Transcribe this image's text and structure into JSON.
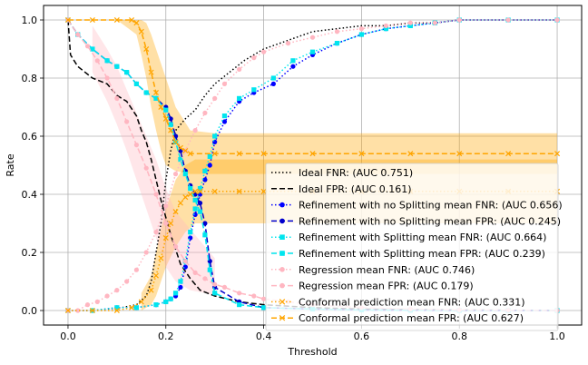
{
  "chart_data": {
    "type": "line",
    "title": "",
    "xlabel": "Threshold",
    "ylabel": "Rate",
    "xlim": [
      -0.05,
      1.05
    ],
    "ylim": [
      -0.05,
      1.05
    ],
    "xticks": [
      0.0,
      0.2,
      0.4,
      0.6,
      0.8,
      1.0
    ],
    "xtick_labels": [
      "0.0",
      "0.2",
      "0.4",
      "0.6",
      "0.8",
      "1.0"
    ],
    "yticks": [
      0.0,
      0.2,
      0.4,
      0.6,
      0.8,
      1.0
    ],
    "ytick_labels": [
      "0.0",
      "0.2",
      "0.4",
      "0.6",
      "0.8",
      "1.0"
    ],
    "grid": true,
    "legend_position": "lower-right",
    "series": [
      {
        "name": "Ideal FNR: (AUC 0.751)",
        "color": "#000000",
        "style": "dotted",
        "marker": "none",
        "x": [
          0,
          0.02,
          0.05,
          0.08,
          0.11,
          0.14,
          0.16,
          0.17,
          0.18,
          0.19,
          0.2,
          0.21,
          0.22,
          0.24,
          0.26,
          0.28,
          0.3,
          0.33,
          0.36,
          0.4,
          0.45,
          0.5,
          0.55,
          0.6,
          0.65,
          0.7,
          0.75,
          0.8,
          0.9,
          1.0
        ],
        "y": [
          0,
          0,
          0,
          0.005,
          0.01,
          0.02,
          0.05,
          0.1,
          0.2,
          0.3,
          0.45,
          0.55,
          0.62,
          0.66,
          0.69,
          0.74,
          0.78,
          0.82,
          0.86,
          0.9,
          0.93,
          0.96,
          0.97,
          0.98,
          0.98,
          0.99,
          0.99,
          1.0,
          1.0,
          1.0
        ]
      },
      {
        "name": "Ideal FPR: (AUC 0.161)",
        "color": "#000000",
        "style": "dashed",
        "marker": "none",
        "x": [
          0,
          0.005,
          0.02,
          0.05,
          0.08,
          0.1,
          0.12,
          0.14,
          0.15,
          0.16,
          0.17,
          0.18,
          0.19,
          0.2,
          0.21,
          0.22,
          0.23,
          0.25,
          0.27,
          0.3,
          0.35,
          0.4,
          0.5,
          0.6,
          0.7,
          0.8,
          1.0
        ],
        "y": [
          1.0,
          0.88,
          0.84,
          0.8,
          0.78,
          0.74,
          0.72,
          0.67,
          0.62,
          0.58,
          0.52,
          0.45,
          0.38,
          0.32,
          0.26,
          0.21,
          0.16,
          0.11,
          0.07,
          0.05,
          0.03,
          0.02,
          0.01,
          0.005,
          0.003,
          0.002,
          0.0
        ]
      },
      {
        "name": "Refinement with no Splitting mean FNR: (AUC 0.656)",
        "color": "#0000ff",
        "style": "dotted",
        "marker": "circle",
        "x": [
          0,
          0.05,
          0.1,
          0.14,
          0.18,
          0.2,
          0.21,
          0.22,
          0.23,
          0.24,
          0.25,
          0.26,
          0.27,
          0.28,
          0.29,
          0.3,
          0.32,
          0.35,
          0.38,
          0.42,
          0.46,
          0.5,
          0.55,
          0.6,
          0.65,
          0.7,
          0.75,
          0.8,
          0.9,
          1.0
        ],
        "y": [
          0,
          0,
          0.01,
          0.01,
          0.02,
          0.03,
          0.04,
          0.05,
          0.08,
          0.15,
          0.25,
          0.33,
          0.4,
          0.45,
          0.5,
          0.58,
          0.65,
          0.72,
          0.75,
          0.78,
          0.84,
          0.88,
          0.92,
          0.95,
          0.97,
          0.98,
          0.99,
          1.0,
          1.0,
          1.0
        ]
      },
      {
        "name": "Refinement with no Splitting mean FPR: (AUC 0.245)",
        "color": "#0000cd",
        "style": "dashed",
        "marker": "circle",
        "x": [
          0,
          0.02,
          0.05,
          0.08,
          0.1,
          0.12,
          0.14,
          0.16,
          0.18,
          0.2,
          0.21,
          0.22,
          0.23,
          0.24,
          0.25,
          0.26,
          0.27,
          0.28,
          0.29,
          0.3,
          0.35,
          0.4,
          0.5,
          0.6,
          0.7,
          0.8,
          0.9,
          1.0
        ],
        "y": [
          1.0,
          0.95,
          0.9,
          0.86,
          0.84,
          0.82,
          0.78,
          0.75,
          0.73,
          0.7,
          0.66,
          0.6,
          0.55,
          0.48,
          0.43,
          0.4,
          0.37,
          0.3,
          0.17,
          0.08,
          0.03,
          0.01,
          0.005,
          0.002,
          0.001,
          0,
          0,
          0
        ]
      },
      {
        "name": "Refinement with Splitting mean FNR: (AUC 0.664)",
        "color": "#00e5ee",
        "style": "dotted",
        "marker": "square",
        "x": [
          0,
          0.05,
          0.1,
          0.14,
          0.18,
          0.2,
          0.21,
          0.22,
          0.23,
          0.24,
          0.25,
          0.26,
          0.27,
          0.28,
          0.29,
          0.3,
          0.32,
          0.35,
          0.38,
          0.42,
          0.46,
          0.5,
          0.55,
          0.6,
          0.65,
          0.7,
          0.75,
          0.8,
          0.9,
          1.0
        ],
        "y": [
          0,
          0,
          0.01,
          0.01,
          0.02,
          0.03,
          0.04,
          0.06,
          0.1,
          0.17,
          0.27,
          0.35,
          0.42,
          0.48,
          0.53,
          0.6,
          0.67,
          0.73,
          0.76,
          0.8,
          0.86,
          0.89,
          0.92,
          0.95,
          0.97,
          0.98,
          0.99,
          1.0,
          1.0,
          1.0
        ]
      },
      {
        "name": "Refinement with Splitting mean FPR: (AUC 0.239)",
        "color": "#00e5ee",
        "style": "dashed",
        "marker": "square",
        "x": [
          0,
          0.02,
          0.05,
          0.08,
          0.1,
          0.12,
          0.14,
          0.16,
          0.18,
          0.2,
          0.21,
          0.22,
          0.23,
          0.24,
          0.25,
          0.26,
          0.27,
          0.28,
          0.29,
          0.3,
          0.35,
          0.4,
          0.5,
          0.6,
          0.7,
          0.8,
          0.9,
          1.0
        ],
        "y": [
          1.0,
          0.95,
          0.9,
          0.86,
          0.84,
          0.82,
          0.78,
          0.75,
          0.73,
          0.69,
          0.64,
          0.58,
          0.52,
          0.47,
          0.42,
          0.38,
          0.34,
          0.26,
          0.14,
          0.06,
          0.02,
          0.01,
          0.005,
          0.002,
          0.001,
          0,
          0,
          0
        ]
      },
      {
        "name": "Regression mean FNR: (AUC 0.746)",
        "color": "#ffb6c1",
        "style": "dotted",
        "marker": "circle",
        "x": [
          0,
          0.02,
          0.04,
          0.06,
          0.08,
          0.1,
          0.12,
          0.14,
          0.16,
          0.18,
          0.2,
          0.22,
          0.24,
          0.26,
          0.28,
          0.3,
          0.32,
          0.35,
          0.38,
          0.4,
          0.45,
          0.5,
          0.55,
          0.6,
          0.65,
          0.7,
          0.75,
          0.8,
          0.9,
          1.0
        ],
        "y": [
          0,
          0,
          0.02,
          0.03,
          0.05,
          0.07,
          0.1,
          0.14,
          0.2,
          0.27,
          0.36,
          0.47,
          0.55,
          0.62,
          0.68,
          0.73,
          0.78,
          0.83,
          0.87,
          0.89,
          0.92,
          0.94,
          0.96,
          0.97,
          0.98,
          0.99,
          0.99,
          1.0,
          1.0,
          1.0
        ]
      },
      {
        "name": "Regression mean FPR: (AUC 0.179)",
        "color": "#ffb6c1",
        "style": "dashed",
        "marker": "circle",
        "x": [
          0,
          0.02,
          0.04,
          0.06,
          0.08,
          0.1,
          0.12,
          0.14,
          0.16,
          0.18,
          0.2,
          0.22,
          0.24,
          0.26,
          0.28,
          0.3,
          0.32,
          0.35,
          0.38,
          0.4,
          0.45,
          0.5,
          0.6,
          0.7,
          0.8,
          0.9,
          1.0
        ],
        "y": [
          1.0,
          0.95,
          0.91,
          0.86,
          0.8,
          0.73,
          0.65,
          0.57,
          0.49,
          0.4,
          0.3,
          0.22,
          0.17,
          0.13,
          0.11,
          0.09,
          0.08,
          0.06,
          0.05,
          0.04,
          0.03,
          0.02,
          0.01,
          0.005,
          0.002,
          0.001,
          0
        ]
      },
      {
        "name": "Conformal prediction mean FNR: (AUC 0.331)",
        "color": "#ffa500",
        "style": "dotted",
        "marker": "x",
        "x": [
          0,
          0.05,
          0.1,
          0.13,
          0.15,
          0.17,
          0.18,
          0.19,
          0.2,
          0.21,
          0.22,
          0.23,
          0.24,
          0.25,
          0.26,
          0.27,
          0.3,
          0.35,
          0.4,
          0.5,
          0.6,
          0.7,
          0.8,
          0.9,
          1.0
        ],
        "y": [
          0,
          0,
          0.0,
          0.01,
          0.03,
          0.07,
          0.12,
          0.18,
          0.25,
          0.3,
          0.34,
          0.37,
          0.39,
          0.4,
          0.41,
          0.41,
          0.41,
          0.41,
          0.41,
          0.41,
          0.41,
          0.41,
          0.41,
          0.41,
          0.41
        ]
      },
      {
        "name": "Conformal prediction mean FPR: (AUC 0.627)",
        "color": "#ffa500",
        "style": "dashed",
        "marker": "x",
        "x": [
          0,
          0.05,
          0.1,
          0.13,
          0.14,
          0.15,
          0.16,
          0.17,
          0.18,
          0.19,
          0.2,
          0.21,
          0.22,
          0.23,
          0.24,
          0.25,
          0.3,
          0.35,
          0.4,
          0.5,
          0.6,
          0.7,
          0.8,
          0.9,
          1.0
        ],
        "y": [
          1.0,
          1.0,
          1.0,
          1.0,
          0.99,
          0.96,
          0.9,
          0.82,
          0.75,
          0.7,
          0.66,
          0.62,
          0.58,
          0.56,
          0.55,
          0.54,
          0.54,
          0.54,
          0.54,
          0.54,
          0.54,
          0.54,
          0.54,
          0.54,
          0.54
        ]
      }
    ],
    "bands": [
      {
        "label": "Conformal FPR band",
        "color": "#ffa500",
        "x": [
          0.1,
          0.14,
          0.15,
          0.16,
          0.17,
          0.18,
          0.19,
          0.2,
          0.22,
          0.25,
          0.3,
          0.4,
          0.5,
          0.6,
          0.7,
          0.8,
          0.9,
          1.0
        ],
        "lower": [
          1.0,
          0.95,
          0.88,
          0.8,
          0.7,
          0.62,
          0.55,
          0.5,
          0.48,
          0.47,
          0.47,
          0.47,
          0.47,
          0.47,
          0.47,
          0.47,
          0.47,
          0.47
        ],
        "upper": [
          1.0,
          1.0,
          1.0,
          0.99,
          0.95,
          0.9,
          0.85,
          0.8,
          0.7,
          0.62,
          0.61,
          0.61,
          0.61,
          0.61,
          0.61,
          0.61,
          0.61,
          0.61
        ]
      },
      {
        "label": "Conformal FNR band",
        "color": "#ffa500",
        "x": [
          0.15,
          0.17,
          0.18,
          0.19,
          0.2,
          0.22,
          0.24,
          0.26,
          0.3,
          0.4,
          0.5,
          0.6,
          0.7,
          0.8,
          0.9,
          1.0
        ],
        "lower": [
          0.0,
          0.02,
          0.05,
          0.1,
          0.15,
          0.22,
          0.27,
          0.3,
          0.3,
          0.3,
          0.3,
          0.3,
          0.3,
          0.3,
          0.3,
          0.3
        ],
        "upper": [
          0.06,
          0.12,
          0.2,
          0.28,
          0.35,
          0.45,
          0.5,
          0.52,
          0.52,
          0.52,
          0.52,
          0.52,
          0.52,
          0.52,
          0.52,
          0.52
        ]
      },
      {
        "label": "Regression band",
        "color": "#ffb6c1",
        "x": [
          0.05,
          0.08,
          0.1,
          0.12,
          0.14,
          0.16,
          0.18,
          0.2,
          0.22,
          0.25,
          0.28,
          0.3
        ],
        "lower": [
          0.82,
          0.72,
          0.64,
          0.55,
          0.45,
          0.35,
          0.25,
          0.15,
          0.1,
          0.07,
          0.06,
          0.05
        ],
        "upper": [
          0.98,
          0.9,
          0.84,
          0.76,
          0.68,
          0.6,
          0.52,
          0.42,
          0.34,
          0.28,
          0.22,
          0.18
        ]
      }
    ]
  }
}
